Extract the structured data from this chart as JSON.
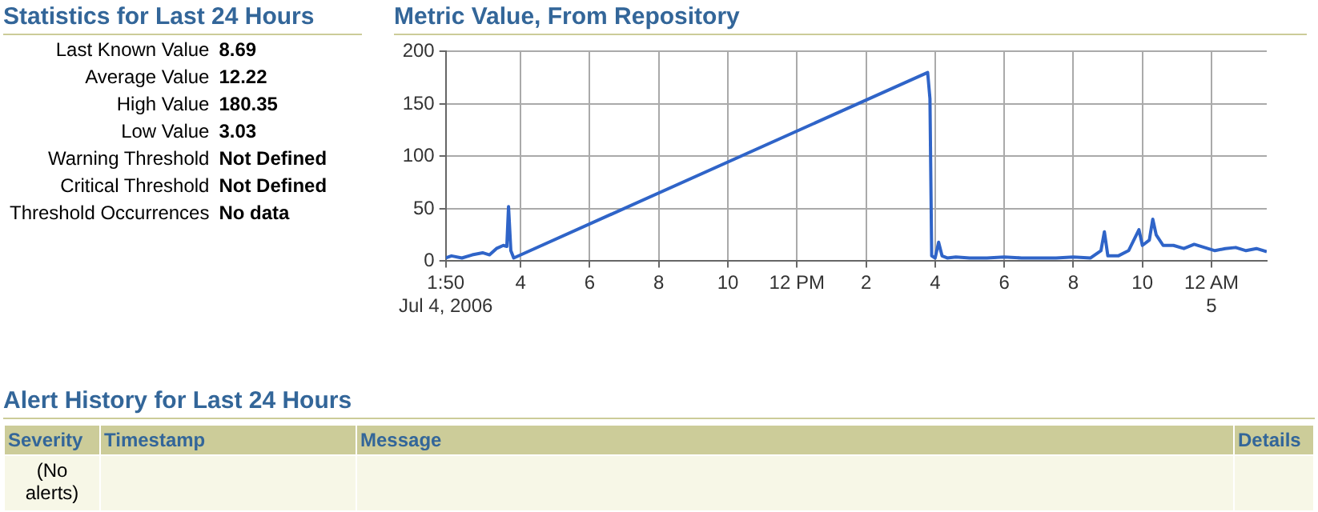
{
  "chart_data": [
    {
      "type": "other",
      "title": "Statistics for Last 24 Hours",
      "annotations": [
        "Last Known Value",
        "8.69",
        "Average Value",
        "12.22",
        "High Value",
        "180.35",
        "Low Value",
        "3.03",
        "Warning Threshold",
        "Not Defined",
        "Critical Threshold",
        "Not Defined",
        "Threshold Occurrences",
        "No data"
      ]
    },
    {
      "type": "line",
      "title": "Metric Value, From Repository",
      "grid": true,
      "legend": false,
      "marker": "none",
      "line_style": "solid",
      "xlim": [
        "2006-07-04T01:50",
        "2006-07-05T01:36"
      ],
      "ylim": [
        0,
        200
      ],
      "xticks": [
        {
          "value": "2006-07-04T01:50",
          "label": "1:50\nJul 4, 2006"
        },
        {
          "value": "2006-07-04T04:00",
          "label": "4"
        },
        {
          "value": "2006-07-04T06:00",
          "label": "6"
        },
        {
          "value": "2006-07-04T08:00",
          "label": "8"
        },
        {
          "value": "2006-07-04T10:00",
          "label": "10"
        },
        {
          "value": "2006-07-04T12:00",
          "label": "12 PM"
        },
        {
          "value": "2006-07-04T14:00",
          "label": "2"
        },
        {
          "value": "2006-07-04T16:00",
          "label": "4"
        },
        {
          "value": "2006-07-04T18:00",
          "label": "6"
        },
        {
          "value": "2006-07-04T20:00",
          "label": "8"
        },
        {
          "value": "2006-07-04T22:00",
          "label": "10"
        },
        {
          "value": "2006-07-05T00:00",
          "label": "12 AM\n5"
        }
      ],
      "yticks": [
        0,
        50,
        100,
        150,
        200
      ],
      "series": [
        {
          "color": "#2f64c8",
          "x": [
            "2006-07-04T01:50",
            "2006-07-04T02:00",
            "2006-07-04T02:18",
            "2006-07-04T02:36",
            "2006-07-04T02:54",
            "2006-07-04T03:06",
            "2006-07-04T03:18",
            "2006-07-04T03:30",
            "2006-07-04T03:36",
            "2006-07-04T03:39",
            "2006-07-04T03:43",
            "2006-07-04T03:48",
            "2006-07-04T15:47",
            "2006-07-04T15:51",
            "2006-07-04T15:54",
            "2006-07-04T16:00",
            "2006-07-04T16:06",
            "2006-07-04T16:12",
            "2006-07-04T16:21",
            "2006-07-04T16:36",
            "2006-07-04T17:00",
            "2006-07-04T17:30",
            "2006-07-04T18:00",
            "2006-07-04T18:30",
            "2006-07-04T19:00",
            "2006-07-04T19:30",
            "2006-07-04T20:00",
            "2006-07-04T20:30",
            "2006-07-04T20:48",
            "2006-07-04T20:54",
            "2006-07-04T21:00",
            "2006-07-04T21:18",
            "2006-07-04T21:36",
            "2006-07-04T21:54",
            "2006-07-04T22:00",
            "2006-07-04T22:12",
            "2006-07-04T22:18",
            "2006-07-04T22:24",
            "2006-07-04T22:36",
            "2006-07-04T22:54",
            "2006-07-04T23:12",
            "2006-07-04T23:30",
            "2006-07-04T23:48",
            "2006-07-05T00:06",
            "2006-07-05T00:24",
            "2006-07-05T00:42",
            "2006-07-05T01:00",
            "2006-07-05T01:18",
            "2006-07-05T01:36"
          ],
          "values": [
            3,
            5,
            3,
            6,
            8,
            6,
            12,
            15,
            14,
            52,
            10,
            3,
            180,
            155,
            5,
            3,
            18,
            5,
            3,
            4,
            3,
            3,
            4,
            3,
            3,
            3,
            4,
            3,
            10,
            28,
            5,
            5,
            10,
            30,
            15,
            20,
            40,
            25,
            15,
            15,
            12,
            16,
            13,
            10,
            12,
            13,
            10,
            12,
            9
          ]
        }
      ]
    },
    {
      "type": "other",
      "title": "Alert History for Last 24 Hours",
      "annotations": [
        "Severity",
        "Timestamp",
        "Message",
        "Details",
        "(No alerts)"
      ]
    }
  ]
}
